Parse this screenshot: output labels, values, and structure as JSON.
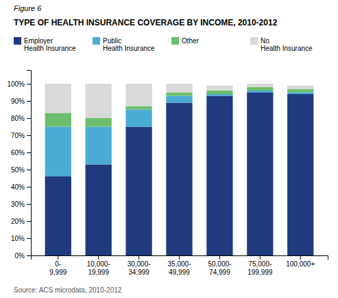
{
  "chart_data": {
    "type": "bar",
    "stacked": true,
    "grid": false,
    "legend": "top",
    "title": "TYPE OF HEALTH INSURANCE COVERAGE BY INCOME, 2010-2012",
    "annotations": [
      "Figure 6",
      "Source: ACS microdata, 2010-2012"
    ],
    "categories": [
      "0-\n9,999",
      "10,000-\n19,999",
      "30,000-\n34,999",
      "35,000-\n49,999",
      "50,000-\n74,999",
      "75,000-\n199,999",
      "100,000+"
    ],
    "series": [
      {
        "name": "Employer\nHealth Insurance",
        "color": "#1F3A7D",
        "values": [
          46,
          53,
          75,
          89,
          93,
          95,
          94
        ]
      },
      {
        "name": "Public\nHealth Insurance",
        "color": "#4BACD6",
        "values": [
          29,
          22,
          10,
          4,
          1,
          1,
          1
        ]
      },
      {
        "name": "Other",
        "color": "#6DBE6C",
        "values": [
          8,
          5,
          2,
          2,
          2,
          2,
          2
        ]
      },
      {
        "name": "No\nHealth Insurance",
        "color": "#D9D9D9",
        "values": [
          17,
          20,
          13,
          5,
          3,
          2,
          2
        ]
      }
    ],
    "ylim": [
      0,
      108
    ],
    "yticks": [
      {
        "value": 0,
        "label": "0%"
      },
      {
        "value": 10,
        "label": "10%"
      },
      {
        "value": 20,
        "label": "20%"
      },
      {
        "value": 30,
        "label": "30%"
      },
      {
        "value": 40,
        "label": "40%"
      },
      {
        "value": 50,
        "label": "50%"
      },
      {
        "value": 60,
        "label": "60%"
      },
      {
        "value": 70,
        "label": "70%"
      },
      {
        "value": 80,
        "label": "80%"
      },
      {
        "value": 90,
        "label": "90%"
      },
      {
        "value": 100,
        "label": "100%"
      }
    ]
  }
}
